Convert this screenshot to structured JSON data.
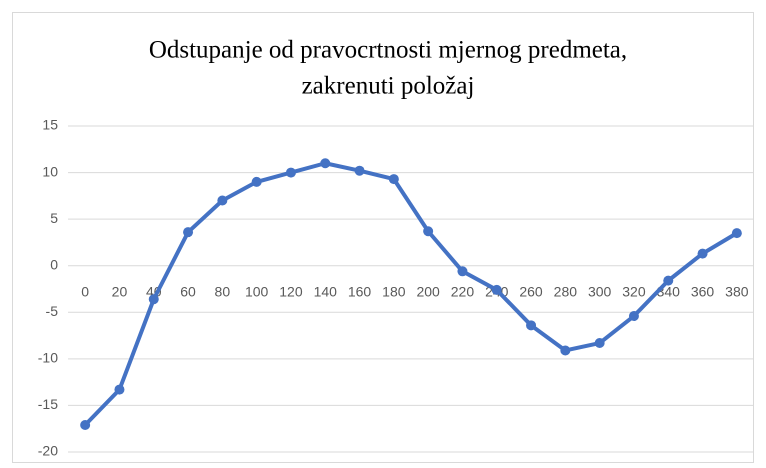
{
  "chart_data": {
    "type": "line",
    "title": [
      "Odstupanje od pravocrtnosti  mjernog predmeta,",
      "zakrenuti  položaj"
    ],
    "categories": [
      0,
      20,
      40,
      60,
      80,
      100,
      120,
      140,
      160,
      180,
      200,
      220,
      240,
      260,
      280,
      300,
      320,
      340,
      360,
      380
    ],
    "series": [
      {
        "color": "#4472c4",
        "values": [
          -17.1,
          -13.3,
          -3.6,
          3.6,
          7.0,
          9.0,
          10.0,
          11.0,
          10.2,
          9.3,
          3.7,
          -0.6,
          -2.6,
          -6.4,
          -9.1,
          -8.3,
          -5.4,
          -1.6,
          1.3,
          3.5
        ]
      }
    ],
    "ylim": [
      -20,
      15
    ],
    "yticks": [
      -20,
      -15,
      -10,
      -5,
      0,
      5,
      10,
      15
    ],
    "grid": true
  }
}
